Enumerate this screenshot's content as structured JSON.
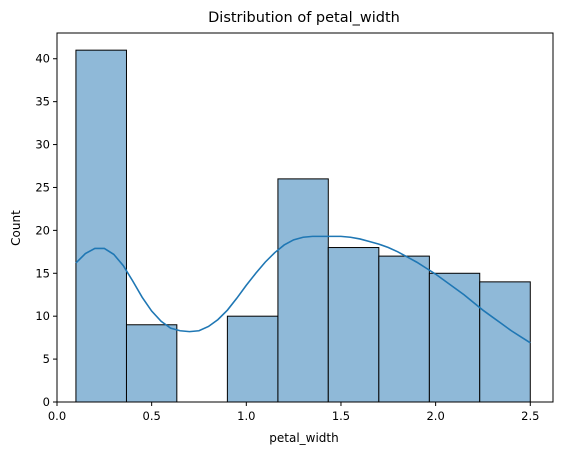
{
  "chart_data": {
    "type": "bar",
    "title": "Distribution of petal_width",
    "xlabel": "petal_width",
    "ylabel": "Count",
    "xlim": [
      0.0,
      2.62
    ],
    "ylim": [
      0,
      43
    ],
    "xticks": [
      0.0,
      0.5,
      1.0,
      1.5,
      2.0,
      2.5
    ],
    "xtick_labels": [
      "0.0",
      "0.5",
      "1.0",
      "1.5",
      "2.0",
      "2.5"
    ],
    "yticks": [
      0,
      5,
      10,
      15,
      20,
      25,
      30,
      35,
      40
    ],
    "ytick_labels": [
      "0",
      "5",
      "10",
      "15",
      "20",
      "25",
      "30",
      "35",
      "40"
    ],
    "bins": [
      {
        "x0": 0.1,
        "x1": 0.367,
        "count": 41
      },
      {
        "x0": 0.367,
        "x1": 0.633,
        "count": 9
      },
      {
        "x0": 0.633,
        "x1": 0.9,
        "count": 0
      },
      {
        "x0": 0.9,
        "x1": 1.167,
        "count": 10
      },
      {
        "x0": 1.167,
        "x1": 1.433,
        "count": 26
      },
      {
        "x0": 1.433,
        "x1": 1.7,
        "count": 18
      },
      {
        "x0": 1.7,
        "x1": 1.967,
        "count": 17
      },
      {
        "x0": 1.967,
        "x1": 2.233,
        "count": 15
      },
      {
        "x0": 2.233,
        "x1": 2.5,
        "count": 14
      }
    ],
    "kde": {
      "x": [
        0.1,
        0.15,
        0.2,
        0.25,
        0.3,
        0.35,
        0.4,
        0.45,
        0.5,
        0.55,
        0.6,
        0.65,
        0.7,
        0.75,
        0.8,
        0.85,
        0.9,
        0.95,
        1.0,
        1.05,
        1.1,
        1.15,
        1.2,
        1.25,
        1.3,
        1.35,
        1.4,
        1.45,
        1.5,
        1.55,
        1.6,
        1.65,
        1.7,
        1.75,
        1.8,
        1.85,
        1.9,
        1.95,
        2.0,
        2.05,
        2.1,
        2.15,
        2.2,
        2.25,
        2.3,
        2.35,
        2.4,
        2.45,
        2.5
      ],
      "y": [
        16.2,
        17.3,
        17.9,
        17.9,
        17.2,
        15.9,
        14.1,
        12.2,
        10.6,
        9.4,
        8.6,
        8.3,
        8.2,
        8.3,
        8.8,
        9.6,
        10.7,
        12.1,
        13.6,
        15.0,
        16.3,
        17.4,
        18.3,
        18.9,
        19.2,
        19.3,
        19.3,
        19.3,
        19.3,
        19.2,
        19.0,
        18.7,
        18.4,
        18.0,
        17.5,
        16.9,
        16.3,
        15.6,
        14.9,
        14.1,
        13.3,
        12.5,
        11.6,
        10.7,
        9.9,
        9.1,
        8.3,
        7.6,
        6.9
      ]
    }
  }
}
